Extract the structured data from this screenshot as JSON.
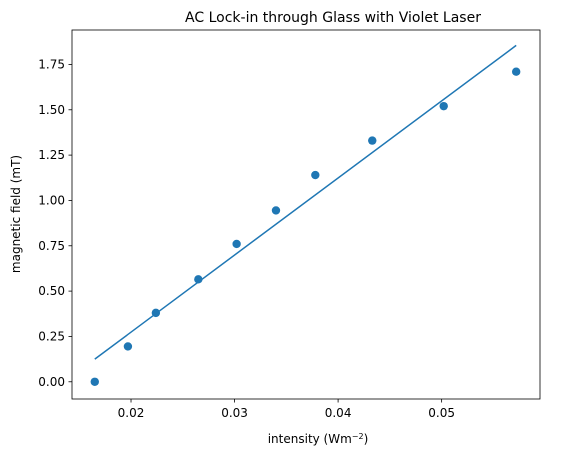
{
  "chart_data": {
    "type": "scatter",
    "title": "AC Lock-in through Glass with Violet Laser",
    "xlabel": "intensity (Wm",
    "xlabel_sup": "−2",
    "xlabel_suffix": ")",
    "ylabel": "magnetic field (mT)",
    "xlim": [
      0.0143,
      0.0595
    ],
    "ylim": [
      -0.095,
      1.94
    ],
    "x_ticks": [
      0.02,
      0.03,
      0.04,
      0.05
    ],
    "x_tick_labels": [
      "0.02",
      "0.03",
      "0.04",
      "0.05"
    ],
    "y_ticks": [
      0.0,
      0.25,
      0.5,
      0.75,
      1.0,
      1.25,
      1.5,
      1.75
    ],
    "y_tick_labels": [
      "0.00",
      "0.25",
      "0.50",
      "0.75",
      "1.00",
      "1.25",
      "1.50",
      "1.75"
    ],
    "grid": false,
    "color": "#1f77b4",
    "series": [
      {
        "kind": "points",
        "x": [
          0.0165,
          0.0197,
          0.0224,
          0.0265,
          0.0302,
          0.034,
          0.0378,
          0.0433,
          0.0502,
          0.0572
        ],
        "y": [
          0.0,
          0.195,
          0.38,
          0.565,
          0.76,
          0.945,
          1.14,
          1.33,
          1.52,
          1.71
        ]
      },
      {
        "kind": "fit-line",
        "x": [
          0.0165,
          0.0572
        ],
        "y": [
          0.125,
          1.855
        ]
      }
    ]
  }
}
